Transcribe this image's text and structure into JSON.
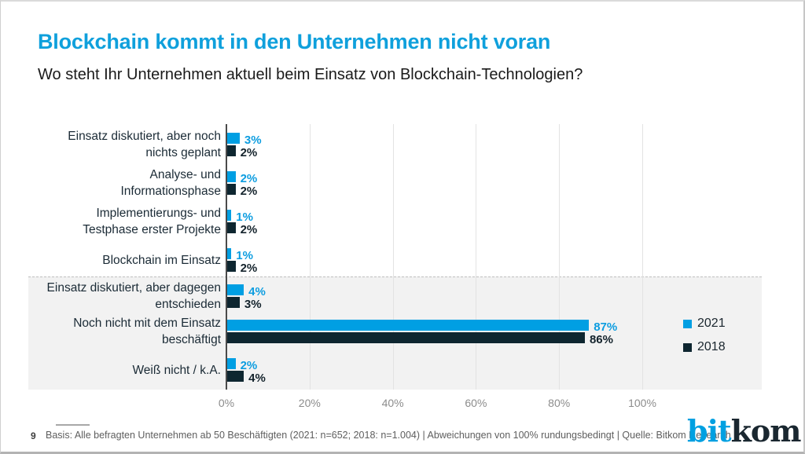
{
  "header": {
    "title": "Blockchain kommt in den Unternehmen nicht voran",
    "subtitle": "Wo steht Ihr Unternehmen aktuell beim Einsatz von Blockchain-Technologien?"
  },
  "chart_data": {
    "type": "bar",
    "orientation": "horizontal",
    "unit": "%",
    "categories": [
      [
        "Einsatz diskutiert, aber noch",
        "nichts geplant"
      ],
      [
        "Analyse- und",
        "Informationsphase"
      ],
      [
        "Implementierungs- und",
        "Testphase erster Projekte"
      ],
      [
        "Blockchain im Einsatz"
      ],
      [
        "Einsatz diskutiert, aber dagegen",
        "entschieden"
      ],
      [
        "Noch nicht mit dem Einsatz",
        "beschäftigt"
      ],
      [
        "Weiß nicht / k.A."
      ]
    ],
    "series": [
      {
        "name": "2021",
        "color": "#009FE3",
        "values": [
          3,
          2,
          1,
          1,
          4,
          87,
          2
        ]
      },
      {
        "name": "2018",
        "color": "#0E2630",
        "values": [
          2,
          2,
          2,
          2,
          3,
          86,
          4
        ]
      }
    ],
    "x_ticks": [
      0,
      20,
      40,
      60,
      80,
      100
    ],
    "x_tick_labels": [
      "0%",
      "20%",
      "40%",
      "60%",
      "80%",
      "100%"
    ],
    "xlim": [
      0,
      100
    ],
    "grid": true,
    "legend_position": "right-inside-band",
    "highlight_band": {
      "from_index": 4,
      "to_index": 6,
      "color": "#F2F2F2",
      "top_border": "dashed"
    }
  },
  "footer": {
    "page_number": "9",
    "source": "Basis: Alle befragten Unternehmen ab 50 Beschäftigten (2021: n=652; 2018: n=1.004) | Abweichungen von 100% rundungsbedingt | Quelle: Bitkom Research",
    "logo_part1": "bit",
    "logo_part2": "kom"
  },
  "theme": {
    "title_color": "#0FA0DC",
    "bar_blue": "#009FE3",
    "bar_dark": "#0E2630",
    "band_gray": "#F2F2F2",
    "gridline_color": "#E3E3E3",
    "axis_color": "#4A4A4A",
    "tick_label_color": "#8C8C8C",
    "footer_text_color": "#5E5E5E"
  }
}
